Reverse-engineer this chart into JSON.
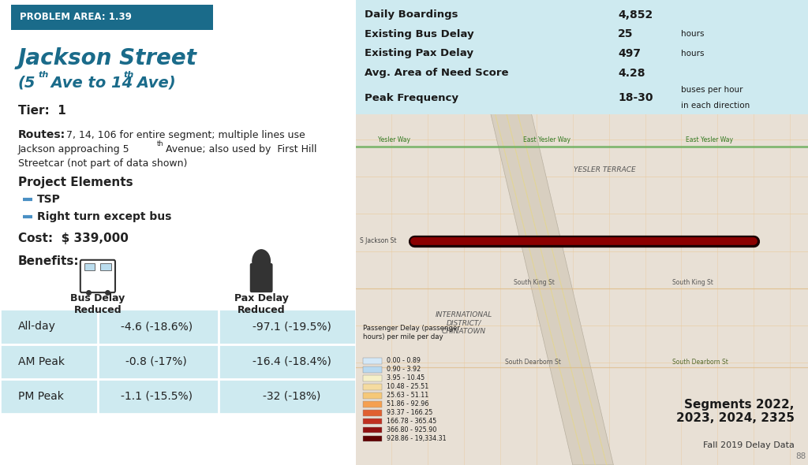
{
  "problem_area": "PROBLEM AREA: 1.39",
  "problem_area_bg": "#1a6b8a",
  "title_line1": "Jackson Street",
  "title_color": "#1a6b8a",
  "tier": "Tier:  1",
  "routes_bold": "Routes:",
  "routes_text": " 7, 14, 106 for entire segment; multiple lines use",
  "routes_line3": "Streetcar (not part of data shown)",
  "project_elements_title": "Project Elements",
  "project_elements": [
    "TSP",
    "Right turn except bus"
  ],
  "bullet_color": "#4a90c4",
  "cost": "Cost:  $ 339,000",
  "benefits_title": "Benefits:",
  "bus_delay_label": "Bus Delay\nReduced",
  "pax_delay_label": "Pax Delay\nReduced",
  "table_rows": [
    "All-day",
    "AM Peak",
    "PM Peak"
  ],
  "bus_delay_values": [
    "-4.6 (-18.6%)",
    "-0.8 (-17%)",
    "-1.1 (-15.5%)"
  ],
  "pax_delay_values": [
    "-97.1 (-19.5%)",
    "-16.4 (-18.4%)",
    "-32 (-18%)"
  ],
  "table_bg": "#ceeaf0",
  "stats_bg": "#ceeaf0",
  "stats": [
    {
      "label": "Daily Boardings",
      "value": "4,852",
      "unit": ""
    },
    {
      "label": "Existing Bus Delay",
      "value": "25",
      "unit": "hours"
    },
    {
      "label": "Existing Pax Delay",
      "value": "497",
      "unit": "hours"
    },
    {
      "label": "Avg. Area of Need Score",
      "value": "4.28",
      "unit": ""
    },
    {
      "label": "Peak Frequency",
      "value": "18-30",
      "unit": "buses per hour\nin each direction"
    }
  ],
  "segments_text": "Segments 2022,\n2023, 2024, 2325",
  "footer_text": "Fall 2019 Delay Data",
  "legend_title": "Passenger Delay (passenger\nhours) per mile per day",
  "legend_ranges": [
    "0.00 - 0.89",
    "0.90 - 3.92",
    "3.95 - 10.45",
    "10.48 - 25.51",
    "25.63 - 51.11",
    "51.86 - 92.96",
    "93.37 - 166.25",
    "166.78 - 365.45",
    "366.80 - 925.90",
    "928.86 - 19,334.31"
  ],
  "legend_colors": [
    "#d4e8f7",
    "#b8d9f0",
    "#f5f0c8",
    "#f5dba0",
    "#f5c878",
    "#f5a050",
    "#e06030",
    "#c03020",
    "#901010",
    "#600000"
  ],
  "map_segment_color": "#8b0000",
  "map_bg": "#e8e0d5"
}
